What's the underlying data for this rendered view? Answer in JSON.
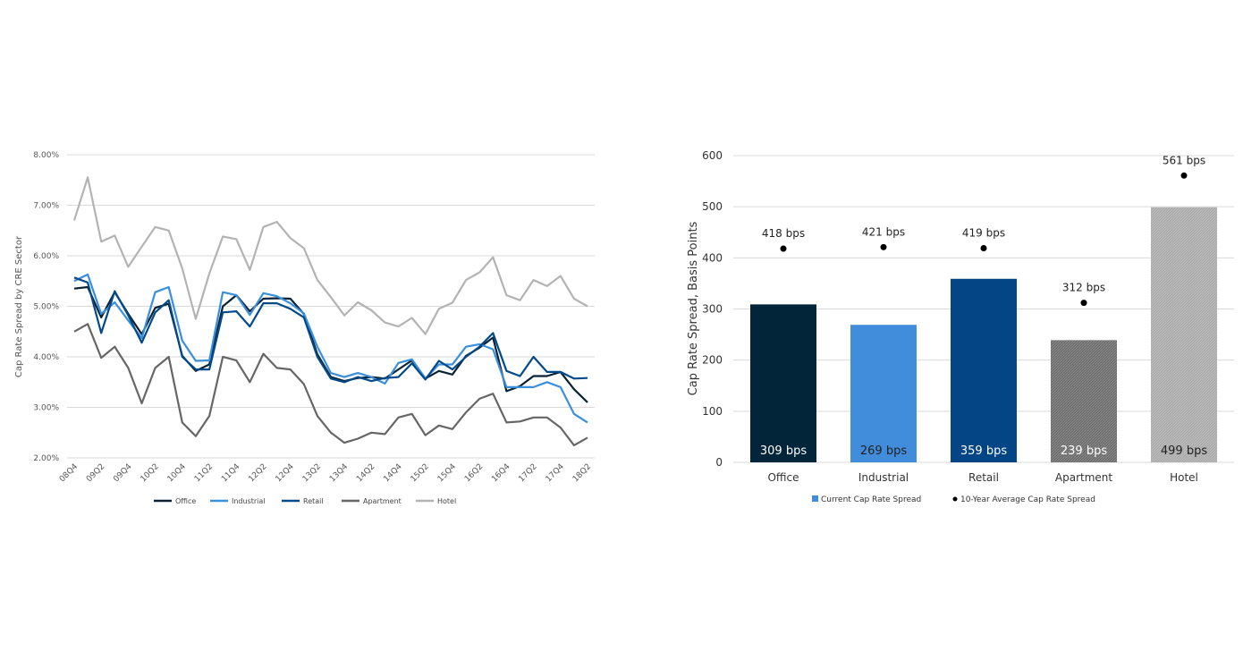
{
  "chart_data": [
    {
      "type": "line",
      "title": "",
      "ylabel": "Cap Rate Spread by CRE Sector",
      "xlabel": "",
      "ylim": [
        2,
        8
      ],
      "yticks": [
        "2.00%",
        "3.00%",
        "4.00%",
        "5.00%",
        "6.00%",
        "7.00%",
        "8.00%"
      ],
      "grid": true,
      "legend_position": "bottom",
      "x": [
        "08Q4",
        "09Q1",
        "09Q2",
        "09Q3",
        "09Q4",
        "10Q1",
        "10Q2",
        "10Q3",
        "10Q4",
        "11Q1",
        "11Q2",
        "11Q3",
        "11Q4",
        "12Q1",
        "12Q2",
        "12Q3",
        "12Q4",
        "13Q1",
        "13Q2",
        "13Q3",
        "13Q4",
        "14Q1",
        "14Q2",
        "14Q3",
        "14Q4",
        "15Q1",
        "15Q2",
        "15Q3",
        "15Q4",
        "16Q1",
        "16Q2",
        "16Q3",
        "16Q4",
        "17Q1",
        "17Q2",
        "17Q3",
        "17Q4",
        "18Q1",
        "18Q2"
      ],
      "xtick_labels": [
        "08Q4",
        "09Q2",
        "09Q4",
        "10Q2",
        "10Q4",
        "11Q2",
        "11Q4",
        "12Q2",
        "12Q4",
        "13Q2",
        "13Q4",
        "14Q2",
        "14Q4",
        "15Q2",
        "15Q4",
        "16Q2",
        "16Q4",
        "17Q2",
        "17Q4",
        "18Q2"
      ],
      "series": [
        {
          "name": "Office",
          "color": "#0a2233",
          "values": [
            5.35,
            5.38,
            4.78,
            5.28,
            4.85,
            4.45,
            4.97,
            5.05,
            4.02,
            3.72,
            3.85,
            5.0,
            5.22,
            4.9,
            5.15,
            5.16,
            5.15,
            4.85,
            4.05,
            3.6,
            3.52,
            3.58,
            3.6,
            3.57,
            3.75,
            3.93,
            3.57,
            3.72,
            3.65,
            4.02,
            4.18,
            4.38,
            3.32,
            3.42,
            3.62,
            3.62,
            3.7,
            3.36,
            3.1
          ]
        },
        {
          "name": "Industrial",
          "color": "#3a8fdc",
          "values": [
            5.5,
            5.63,
            4.85,
            5.08,
            4.72,
            4.37,
            5.28,
            5.38,
            4.32,
            3.92,
            3.93,
            5.28,
            5.22,
            4.83,
            5.26,
            5.2,
            5.06,
            4.86,
            4.2,
            3.68,
            3.6,
            3.68,
            3.6,
            3.47,
            3.88,
            3.95,
            3.57,
            3.85,
            3.85,
            4.2,
            4.25,
            4.15,
            3.4,
            3.4,
            3.4,
            3.5,
            3.4,
            2.87,
            2.7
          ]
        },
        {
          "name": "Retail",
          "color": "#034a8a",
          "values": [
            5.57,
            5.47,
            4.47,
            5.3,
            4.82,
            4.28,
            4.88,
            5.12,
            4.0,
            3.75,
            3.75,
            4.88,
            4.9,
            4.6,
            5.06,
            5.06,
            4.95,
            4.78,
            4.0,
            3.57,
            3.5,
            3.6,
            3.52,
            3.58,
            3.6,
            3.87,
            3.55,
            3.92,
            3.75,
            4.0,
            4.2,
            4.47,
            3.72,
            3.62,
            4.0,
            3.7,
            3.7,
            3.57,
            3.58
          ]
        },
        {
          "name": "Apartment",
          "color": "#666666",
          "values": [
            4.5,
            4.65,
            3.98,
            4.2,
            3.78,
            3.08,
            3.78,
            4.0,
            2.7,
            2.43,
            2.83,
            4.0,
            3.93,
            3.5,
            4.06,
            3.78,
            3.75,
            3.46,
            2.83,
            2.5,
            2.3,
            2.38,
            2.5,
            2.47,
            2.8,
            2.87,
            2.45,
            2.64,
            2.57,
            2.9,
            3.17,
            3.27,
            2.7,
            2.72,
            2.8,
            2.8,
            2.6,
            2.25,
            2.4
          ]
        },
        {
          "name": "Hotel",
          "color": "#b3b3b3",
          "values": [
            6.7,
            7.55,
            6.28,
            6.4,
            5.78,
            6.18,
            6.57,
            6.5,
            5.75,
            4.75,
            5.65,
            6.38,
            6.33,
            5.72,
            6.57,
            6.67,
            6.35,
            6.15,
            5.52,
            5.18,
            4.82,
            5.08,
            4.92,
            4.68,
            4.6,
            4.77,
            4.45,
            4.95,
            5.07,
            5.52,
            5.67,
            5.97,
            5.22,
            5.12,
            5.52,
            5.4,
            5.6,
            5.15,
            5.0
          ]
        }
      ]
    },
    {
      "type": "bar",
      "title": "",
      "ylabel": "Cap Rate Spread, Basis Points",
      "xlabel": "",
      "ylim": [
        0,
        600
      ],
      "yticks": [
        "0",
        "100",
        "200",
        "300",
        "400",
        "500",
        "600"
      ],
      "grid": true,
      "legend_position": "bottom",
      "categories": [
        "Office",
        "Industrial",
        "Retail",
        "Apartment",
        "Hotel"
      ],
      "bar_colors": [
        "#022539",
        "#418ddc",
        "#034585",
        "#6b6b6b",
        "#aaaaaa"
      ],
      "series": [
        {
          "name": "Current Cap Rate Spread",
          "legend_color": "#418ddc",
          "values": [
            309,
            269,
            359,
            239,
            499
          ],
          "labels": [
            "309 bps",
            "269 bps",
            "359 bps",
            "239 bps",
            "499 bps"
          ]
        },
        {
          "name": "10-Year Average Cap Rate Spread",
          "color": "#000000",
          "values": [
            418,
            421,
            419,
            312,
            561
          ],
          "labels": [
            "418 bps",
            "421 bps",
            "419 bps",
            "312 bps",
            "561 bps"
          ]
        }
      ]
    }
  ]
}
